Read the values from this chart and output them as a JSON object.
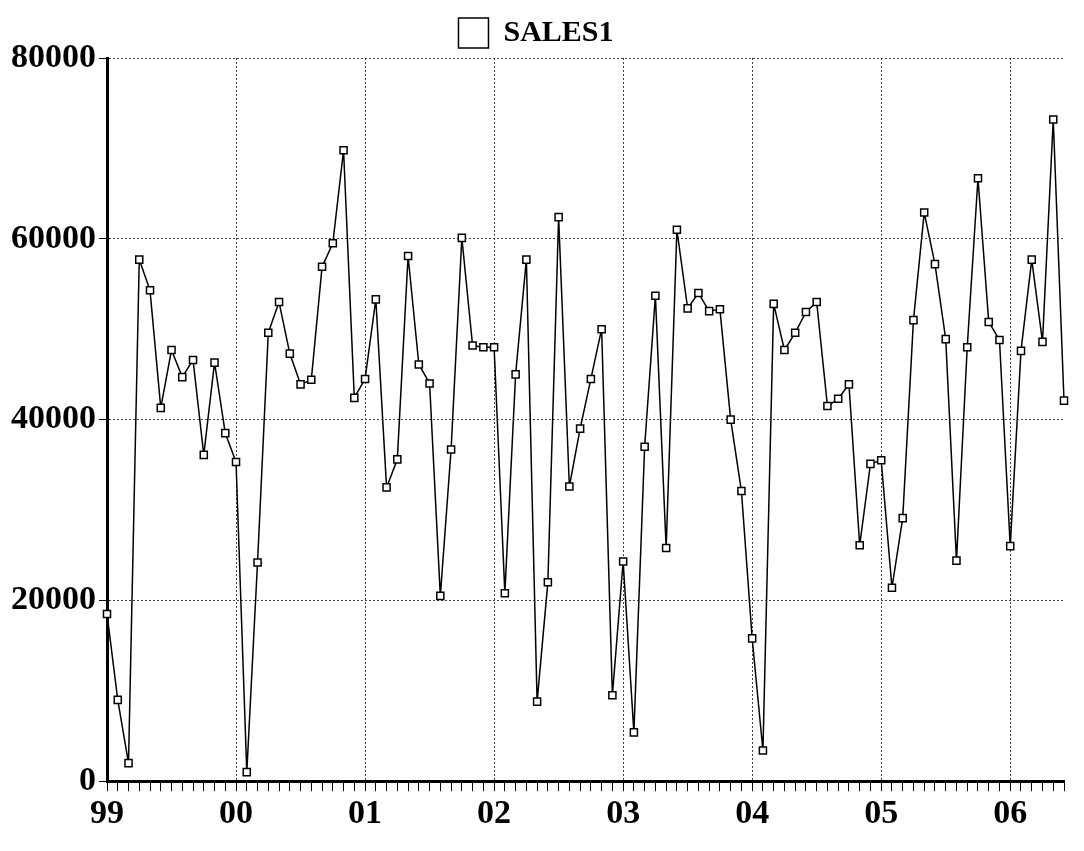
{
  "chart_data": {
    "type": "line",
    "categories": [
      "99",
      null,
      null,
      null,
      null,
      null,
      null,
      null,
      null,
      null,
      null,
      null,
      "00",
      null,
      null,
      null,
      null,
      null,
      null,
      null,
      null,
      null,
      null,
      null,
      "01",
      null,
      null,
      null,
      null,
      null,
      null,
      null,
      null,
      null,
      null,
      null,
      "02",
      null,
      null,
      null,
      null,
      null,
      null,
      null,
      null,
      null,
      null,
      null,
      "03",
      null,
      null,
      null,
      null,
      null,
      null,
      null,
      null,
      null,
      null,
      null,
      "04",
      null,
      null,
      null,
      null,
      null,
      null,
      null,
      null,
      null,
      null,
      null,
      "05",
      null,
      null,
      null,
      null,
      null,
      null,
      null,
      null,
      null,
      null,
      null,
      "06",
      null,
      null,
      null,
      null,
      null
    ],
    "series": [
      {
        "name": "SALES1",
        "color": "#000000",
        "values": [
          18500,
          9000,
          2000,
          57700,
          54300,
          41300,
          47700,
          44700,
          46600,
          36100,
          46300,
          38500,
          35300,
          1000,
          24200,
          49600,
          53000,
          47300,
          43900,
          44400,
          56900,
          59500,
          69800,
          42400,
          44500,
          53300,
          32500,
          35600,
          58100,
          46100,
          44000,
          20500,
          36700,
          60100,
          48200,
          48000,
          48000,
          20800,
          45000,
          57700,
          8800,
          22000,
          62400,
          32600,
          39000,
          44500,
          50000,
          9500,
          24300,
          5400,
          37000,
          53700,
          25800,
          61000,
          52300,
          54000,
          52000,
          52200,
          40000,
          32100,
          15800,
          3400,
          52800,
          47700,
          49600,
          51900,
          53000,
          41500,
          42300,
          43900,
          26100,
          35100,
          35500,
          21400,
          29100,
          51000,
          62900,
          57200,
          48900,
          24400,
          48000,
          66700,
          50800,
          48800,
          26000,
          47600,
          57700,
          48600,
          73200,
          42100
        ]
      }
    ],
    "ylim": [
      0,
      80000
    ],
    "yticks": [
      0,
      20000,
      40000,
      60000,
      80000
    ],
    "grid": true,
    "legend": "top",
    "marker": "square",
    "line_style": "solid"
  }
}
